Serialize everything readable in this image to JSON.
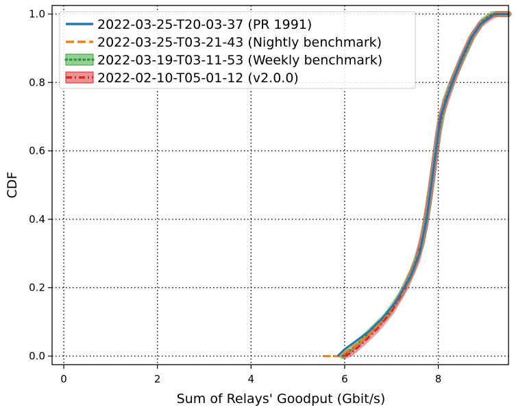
{
  "chart_data": {
    "type": "line",
    "title": "",
    "xlabel": "Sum of Relays' Goodput (Gbit/s)",
    "ylabel": "CDF",
    "xlim": [
      -0.25,
      9.5
    ],
    "ylim": [
      -0.025,
      1.025
    ],
    "xticks": [
      0,
      2,
      4,
      6,
      8
    ],
    "yticks": [
      0.0,
      0.2,
      0.4,
      0.6,
      0.8,
      1.0
    ],
    "xtick_labels": [
      "0",
      "2",
      "4",
      "6",
      "8"
    ],
    "ytick_labels": [
      "0.0",
      "0.2",
      "0.4",
      "0.6",
      "0.8",
      "1.0"
    ],
    "grid": true,
    "legend_position": "top-left",
    "series": [
      {
        "name": "2022-03-25-T20-03-37 (PR 1991)",
        "color": "#1f77b4",
        "style": "solid",
        "band": false,
        "points": [
          [
            5.85,
            0.0
          ],
          [
            6.0,
            0.02
          ],
          [
            6.2,
            0.04
          ],
          [
            6.5,
            0.07
          ],
          [
            6.8,
            0.11
          ],
          [
            7.1,
            0.16
          ],
          [
            7.4,
            0.23
          ],
          [
            7.6,
            0.3
          ],
          [
            7.75,
            0.4
          ],
          [
            7.85,
            0.5
          ],
          [
            7.95,
            0.6
          ],
          [
            8.05,
            0.7
          ],
          [
            8.3,
            0.8
          ],
          [
            8.5,
            0.87
          ],
          [
            8.7,
            0.93
          ],
          [
            8.9,
            0.97
          ],
          [
            9.1,
            0.99
          ],
          [
            9.2,
            1.0
          ],
          [
            9.5,
            1.0
          ]
        ]
      },
      {
        "name": "2022-03-25-T03-21-43 (Nightly benchmark)",
        "color": "#ff7f0e",
        "style": "dashed",
        "band": false,
        "points": [
          [
            5.55,
            0.0
          ],
          [
            5.9,
            0.0
          ],
          [
            6.1,
            0.02
          ],
          [
            6.4,
            0.05
          ],
          [
            6.7,
            0.09
          ],
          [
            7.0,
            0.14
          ],
          [
            7.3,
            0.2
          ],
          [
            7.55,
            0.28
          ],
          [
            7.72,
            0.38
          ],
          [
            7.85,
            0.5
          ],
          [
            7.95,
            0.6
          ],
          [
            8.05,
            0.7
          ],
          [
            8.3,
            0.8
          ],
          [
            8.5,
            0.87
          ],
          [
            8.7,
            0.93
          ],
          [
            8.9,
            0.97
          ],
          [
            9.1,
            0.99
          ],
          [
            9.2,
            1.0
          ],
          [
            9.5,
            1.0
          ]
        ]
      },
      {
        "name": "2022-03-19-T03-11-53 (Weekly benchmark)",
        "color": "#2ca02c",
        "style": "dotted",
        "band": true,
        "points": [
          [
            5.95,
            0.0
          ],
          [
            6.05,
            0.01
          ],
          [
            6.3,
            0.04
          ],
          [
            6.6,
            0.08
          ],
          [
            6.9,
            0.12
          ],
          [
            7.2,
            0.18
          ],
          [
            7.45,
            0.25
          ],
          [
            7.65,
            0.33
          ],
          [
            7.8,
            0.45
          ],
          [
            7.9,
            0.55
          ],
          [
            8.0,
            0.65
          ],
          [
            8.15,
            0.75
          ],
          [
            8.35,
            0.82
          ],
          [
            8.55,
            0.88
          ],
          [
            8.75,
            0.94
          ],
          [
            8.95,
            0.98
          ],
          [
            9.15,
            1.0
          ],
          [
            9.5,
            1.0
          ]
        ]
      },
      {
        "name": "2022-02-10-T05-01-12 (v2.0.0)",
        "color": "#d62728",
        "style": "dashdot",
        "band": true,
        "points": [
          [
            6.0,
            0.0
          ],
          [
            6.15,
            0.01
          ],
          [
            6.4,
            0.04
          ],
          [
            6.7,
            0.08
          ],
          [
            7.0,
            0.13
          ],
          [
            7.3,
            0.2
          ],
          [
            7.55,
            0.28
          ],
          [
            7.72,
            0.38
          ],
          [
            7.85,
            0.5
          ],
          [
            7.95,
            0.6
          ],
          [
            8.05,
            0.7
          ],
          [
            8.3,
            0.8
          ],
          [
            8.5,
            0.87
          ],
          [
            8.7,
            0.93
          ],
          [
            8.9,
            0.97
          ],
          [
            9.1,
            0.99
          ],
          [
            9.25,
            1.0
          ],
          [
            9.5,
            1.0
          ]
        ]
      }
    ]
  }
}
